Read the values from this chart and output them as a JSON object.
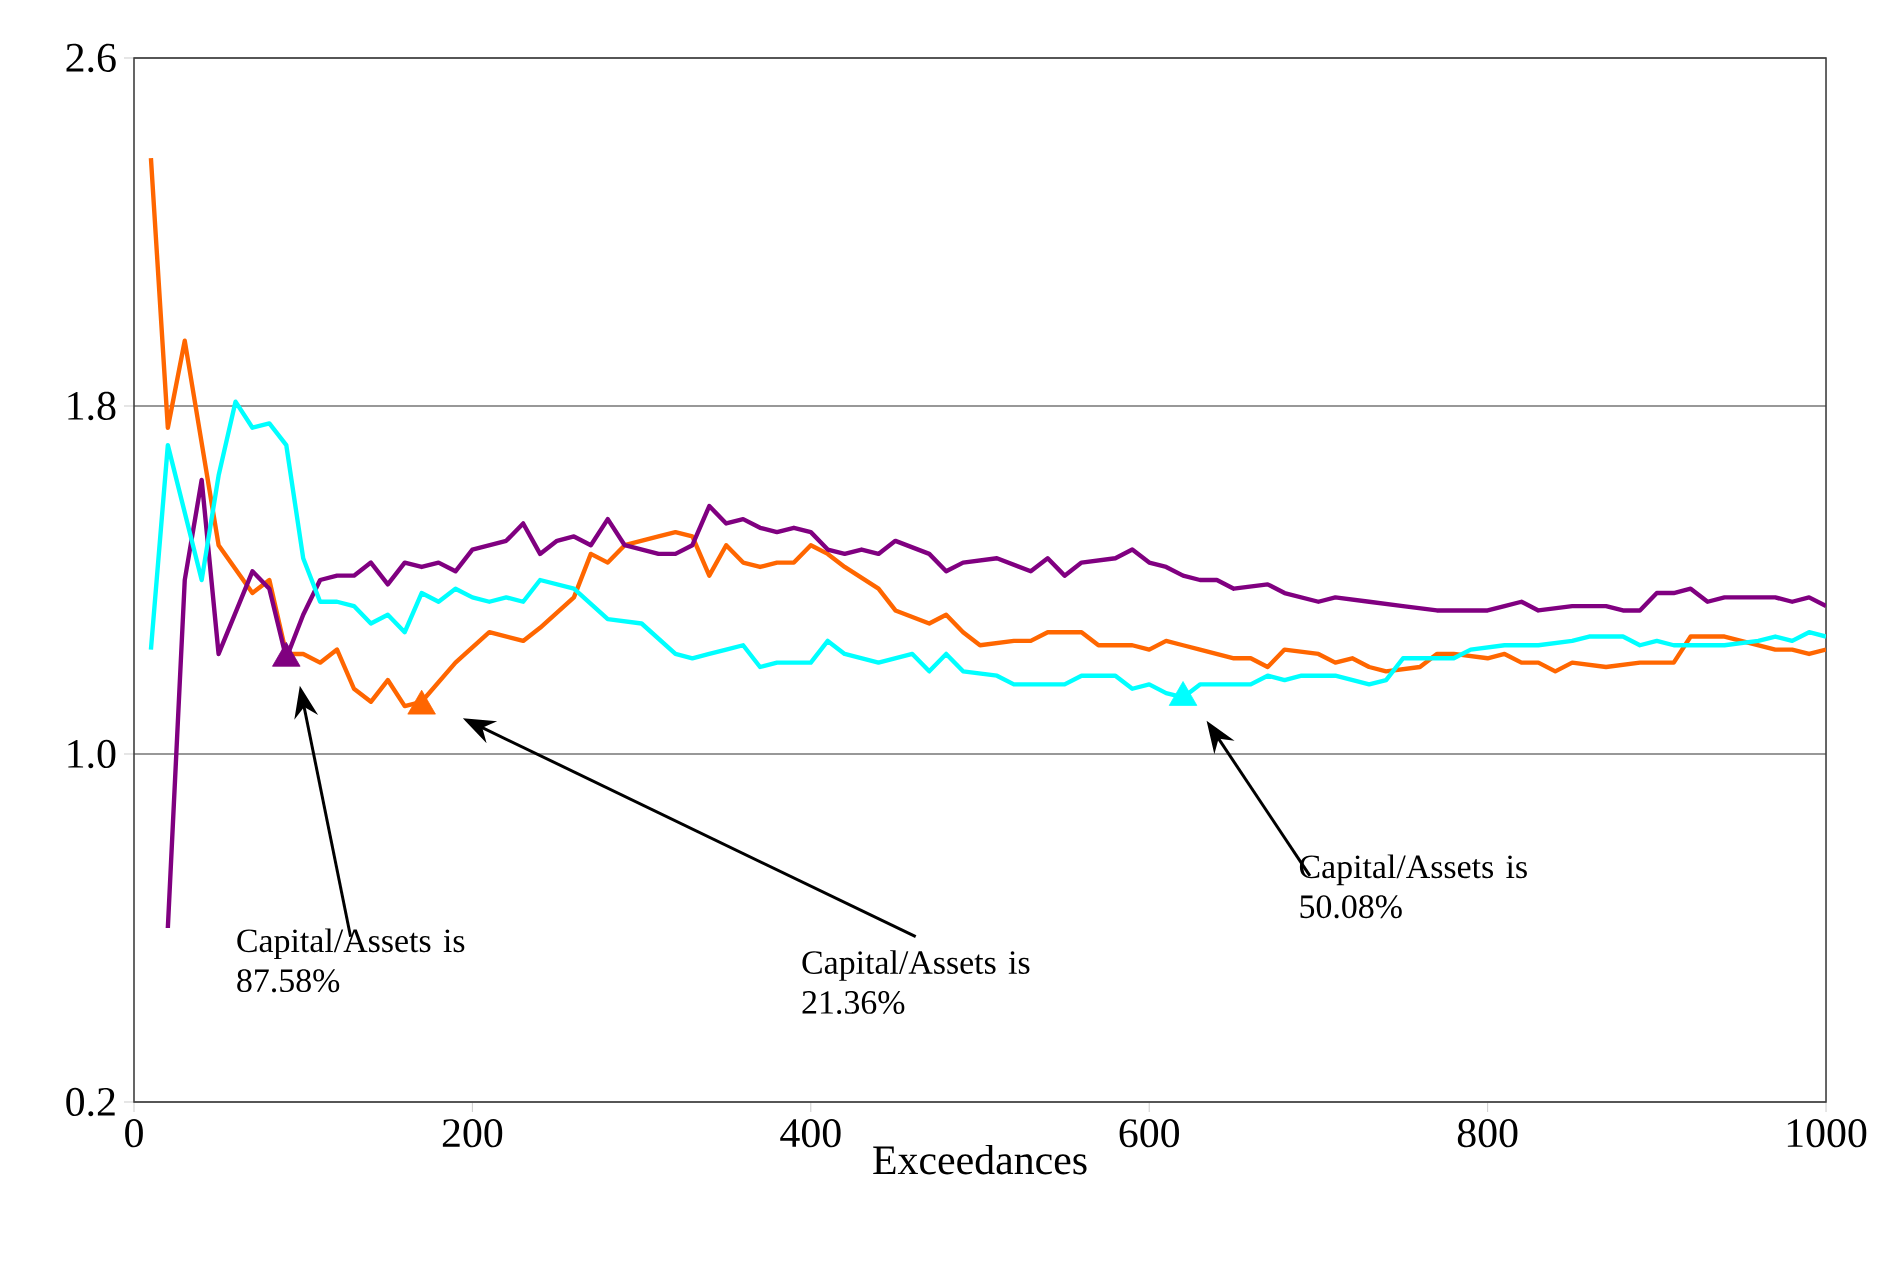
{
  "chart_data": {
    "type": "line",
    "xlabel": "Exceedances",
    "xlim": [
      0,
      1000
    ],
    "xticks": [
      0,
      200,
      400,
      600,
      800,
      1000
    ],
    "ylim": [
      0.2,
      2.6
    ],
    "yticks": [
      0.2,
      {
        "value": 1.0,
        "label": "1.0"
      },
      1.8,
      2.6
    ],
    "grid": "y",
    "marker": "none",
    "line_style": "solid",
    "series": [
      {
        "color": "#ff6600",
        "x": [
          10,
          20,
          30,
          50,
          70,
          80,
          90,
          100,
          110,
          120,
          130,
          140,
          150,
          160,
          170,
          190,
          210,
          230,
          240,
          260,
          270,
          280,
          290,
          310,
          320,
          330,
          340,
          350,
          360,
          370,
          380,
          390,
          400,
          410,
          420,
          440,
          450,
          470,
          480,
          490,
          500,
          520,
          530,
          540,
          560,
          570,
          590,
          600,
          610,
          620,
          630,
          650,
          660,
          670,
          680,
          700,
          710,
          720,
          730,
          740,
          760,
          770,
          780,
          800,
          810,
          820,
          830,
          840,
          850,
          870,
          890,
          910,
          920,
          940,
          970,
          980,
          990,
          1000
        ],
        "values": [
          2.37,
          1.75,
          1.95,
          1.48,
          1.37,
          1.4,
          1.23,
          1.23,
          1.21,
          1.24,
          1.15,
          1.12,
          1.17,
          1.11,
          1.12,
          1.21,
          1.28,
          1.26,
          1.29,
          1.36,
          1.46,
          1.44,
          1.48,
          1.5,
          1.51,
          1.5,
          1.41,
          1.48,
          1.44,
          1.43,
          1.44,
          1.44,
          1.48,
          1.46,
          1.43,
          1.38,
          1.33,
          1.3,
          1.32,
          1.28,
          1.25,
          1.26,
          1.26,
          1.28,
          1.28,
          1.25,
          1.25,
          1.24,
          1.26,
          1.25,
          1.24,
          1.22,
          1.22,
          1.2,
          1.24,
          1.23,
          1.21,
          1.22,
          1.2,
          1.19,
          1.2,
          1.23,
          1.23,
          1.22,
          1.23,
          1.21,
          1.21,
          1.19,
          1.21,
          1.2,
          1.21,
          1.21,
          1.27,
          1.27,
          1.24,
          1.24,
          1.23,
          1.24
        ]
      },
      {
        "color": "#800080",
        "x": [
          20,
          30,
          40,
          50,
          70,
          80,
          90,
          100,
          110,
          120,
          130,
          140,
          150,
          160,
          170,
          180,
          190,
          200,
          220,
          230,
          240,
          250,
          260,
          270,
          280,
          290,
          310,
          320,
          330,
          340,
          350,
          360,
          370,
          380,
          390,
          400,
          410,
          420,
          430,
          440,
          450,
          470,
          480,
          490,
          510,
          530,
          540,
          550,
          560,
          580,
          590,
          600,
          610,
          620,
          630,
          640,
          650,
          670,
          680,
          700,
          710,
          730,
          750,
          770,
          790,
          800,
          810,
          820,
          830,
          850,
          870,
          880,
          890,
          900,
          910,
          920,
          930,
          940,
          960,
          970,
          980,
          990,
          1000
        ],
        "values": [
          0.6,
          1.4,
          1.63,
          1.23,
          1.42,
          1.38,
          1.22,
          1.32,
          1.4,
          1.41,
          1.41,
          1.44,
          1.39,
          1.44,
          1.43,
          1.44,
          1.42,
          1.47,
          1.49,
          1.53,
          1.46,
          1.49,
          1.5,
          1.48,
          1.54,
          1.48,
          1.46,
          1.46,
          1.48,
          1.57,
          1.53,
          1.54,
          1.52,
          1.51,
          1.52,
          1.51,
          1.47,
          1.46,
          1.47,
          1.46,
          1.49,
          1.46,
          1.42,
          1.44,
          1.45,
          1.42,
          1.45,
          1.41,
          1.44,
          1.45,
          1.47,
          1.44,
          1.43,
          1.41,
          1.4,
          1.4,
          1.38,
          1.39,
          1.37,
          1.35,
          1.36,
          1.35,
          1.34,
          1.33,
          1.33,
          1.33,
          1.34,
          1.35,
          1.33,
          1.34,
          1.34,
          1.33,
          1.33,
          1.37,
          1.37,
          1.38,
          1.35,
          1.36,
          1.36,
          1.36,
          1.35,
          1.36,
          1.34
        ]
      },
      {
        "color": "#00ffff",
        "x": [
          10,
          20,
          40,
          50,
          60,
          70,
          80,
          90,
          100,
          110,
          120,
          130,
          140,
          150,
          160,
          170,
          180,
          190,
          200,
          210,
          220,
          230,
          240,
          260,
          280,
          300,
          320,
          330,
          340,
          350,
          360,
          370,
          380,
          390,
          400,
          410,
          420,
          440,
          460,
          470,
          480,
          490,
          510,
          520,
          540,
          550,
          560,
          570,
          580,
          590,
          600,
          610,
          620,
          630,
          640,
          650,
          660,
          670,
          680,
          690,
          710,
          720,
          730,
          740,
          750,
          780,
          790,
          810,
          830,
          850,
          860,
          880,
          890,
          900,
          910,
          940,
          960,
          970,
          980,
          990,
          1000
        ],
        "values": [
          1.24,
          1.71,
          1.4,
          1.64,
          1.81,
          1.75,
          1.76,
          1.71,
          1.45,
          1.35,
          1.35,
          1.34,
          1.3,
          1.32,
          1.28,
          1.37,
          1.35,
          1.38,
          1.36,
          1.35,
          1.36,
          1.35,
          1.4,
          1.38,
          1.31,
          1.3,
          1.23,
          1.22,
          1.23,
          1.24,
          1.25,
          1.2,
          1.21,
          1.21,
          1.21,
          1.26,
          1.23,
          1.21,
          1.23,
          1.19,
          1.23,
          1.19,
          1.18,
          1.16,
          1.16,
          1.16,
          1.18,
          1.18,
          1.18,
          1.15,
          1.16,
          1.14,
          1.13,
          1.16,
          1.16,
          1.16,
          1.16,
          1.18,
          1.17,
          1.18,
          1.18,
          1.17,
          1.16,
          1.17,
          1.22,
          1.22,
          1.24,
          1.25,
          1.25,
          1.26,
          1.27,
          1.27,
          1.25,
          1.26,
          1.25,
          1.25,
          1.26,
          1.27,
          1.26,
          1.28,
          1.27
        ]
      },
      {
        "type": "scatter",
        "marker": "triangle",
        "color": "#800080",
        "x": [
          90
        ],
        "values": [
          1.22
        ]
      },
      {
        "type": "scatter",
        "marker": "triangle",
        "color": "#ff6600",
        "x": [
          170
        ],
        "values": [
          1.11
        ]
      },
      {
        "type": "scatter",
        "marker": "triangle",
        "color": "#00ffff",
        "x": [
          620
        ],
        "values": [
          1.13
        ]
      }
    ],
    "annotations": [
      "Capital/Assets is 87.58%",
      "Capital/Assets is 21.36%",
      "Capital/Assets is 50.08%"
    ]
  }
}
